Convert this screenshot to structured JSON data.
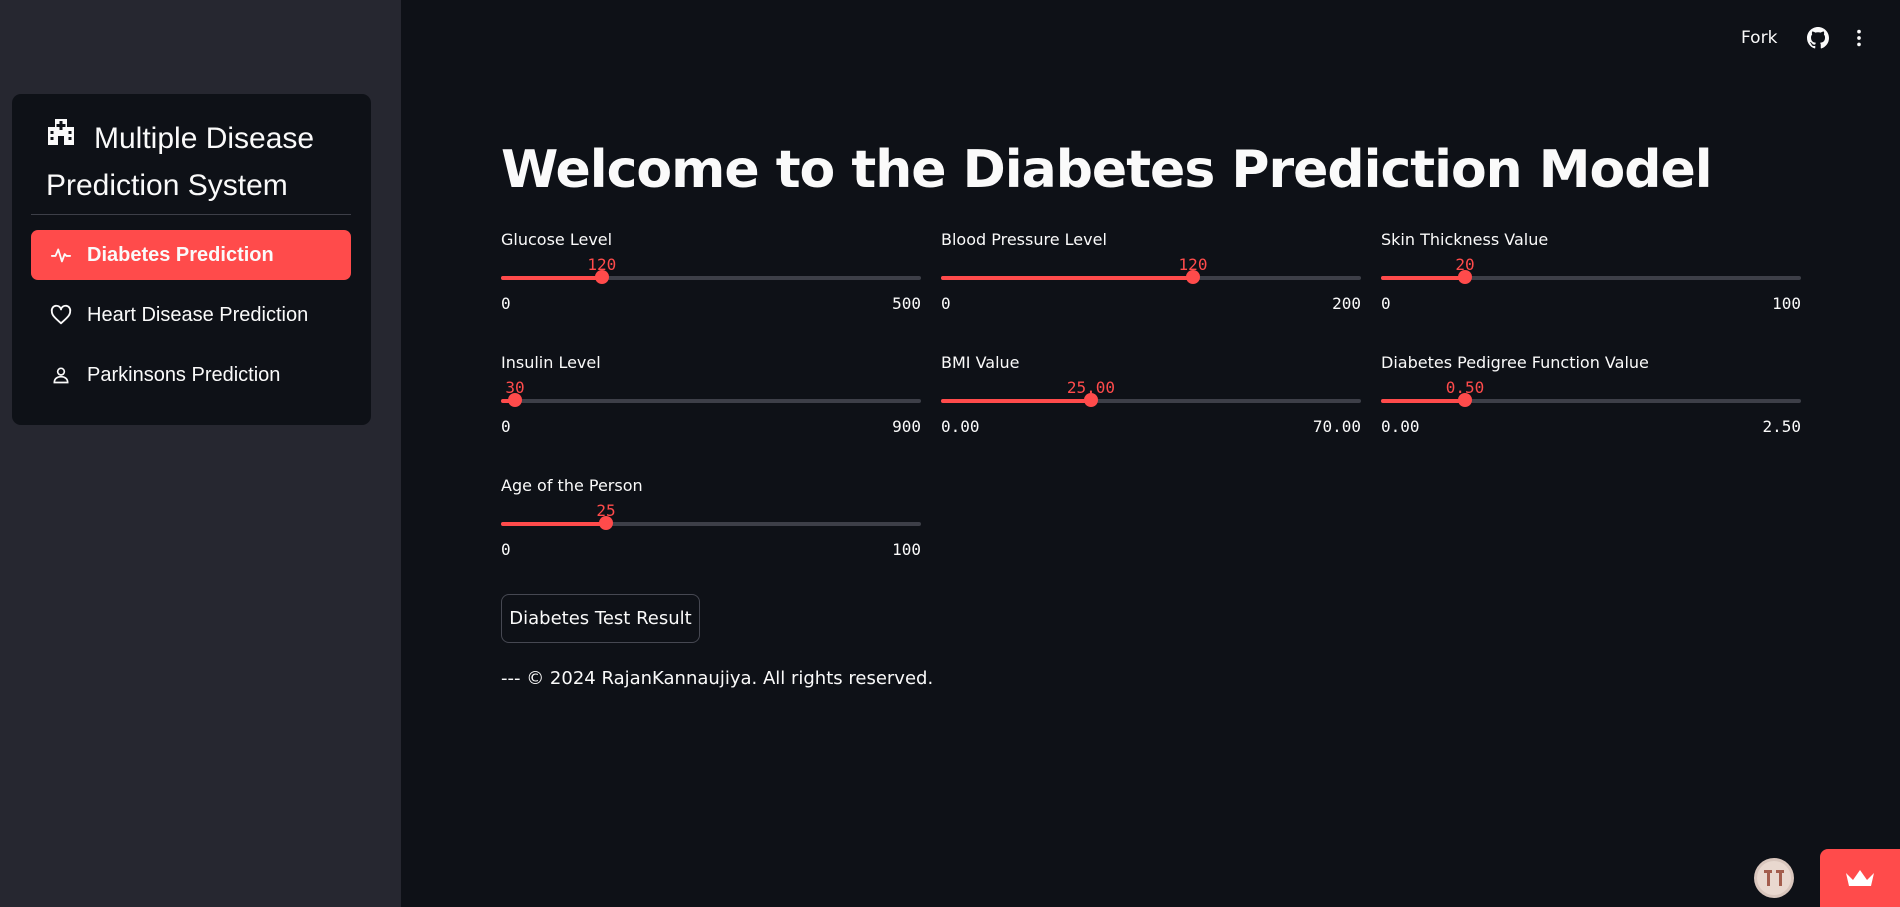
{
  "sidebar": {
    "title": "Multiple Disease Prediction System",
    "items": [
      {
        "label": "Diabetes Prediction",
        "icon": "activity-icon",
        "active": true
      },
      {
        "label": "Heart Disease Prediction",
        "icon": "heart-icon",
        "active": false
      },
      {
        "label": "Parkinsons Prediction",
        "icon": "person-icon",
        "active": false
      }
    ]
  },
  "topbar": {
    "fork_label": "Fork",
    "github_icon": "github-icon",
    "menu_icon": "kebab-menu-icon"
  },
  "main": {
    "title": "Welcome to the Diabetes Prediction Model",
    "sliders": [
      {
        "label": "Glucose Level",
        "value": "120",
        "min": "0",
        "max": "500",
        "fraction": 0.24
      },
      {
        "label": "Blood Pressure Level",
        "value": "120",
        "min": "0",
        "max": "200",
        "fraction": 0.6
      },
      {
        "label": "Skin Thickness Value",
        "value": "20",
        "min": "0",
        "max": "100",
        "fraction": 0.2
      },
      {
        "label": "Insulin Level",
        "value": "30",
        "min": "0",
        "max": "900",
        "fraction": 0.0333
      },
      {
        "label": "BMI Value",
        "value": "25.00",
        "min": "0.00",
        "max": "70.00",
        "fraction": 0.3571
      },
      {
        "label": "Diabetes Pedigree Function Value",
        "value": "0.50",
        "min": "0.00",
        "max": "2.50",
        "fraction": 0.2
      },
      {
        "label": "Age of the Person",
        "value": "25",
        "min": "0",
        "max": "100",
        "fraction": 0.25
      }
    ],
    "button_label": "Diabetes Test Result",
    "footer": "--- © 2024 RajanKannaujiya. All rights reserved."
  },
  "colors": {
    "accent": "#ff4b4b",
    "background": "#0e1117",
    "sidebar": "#262730"
  }
}
